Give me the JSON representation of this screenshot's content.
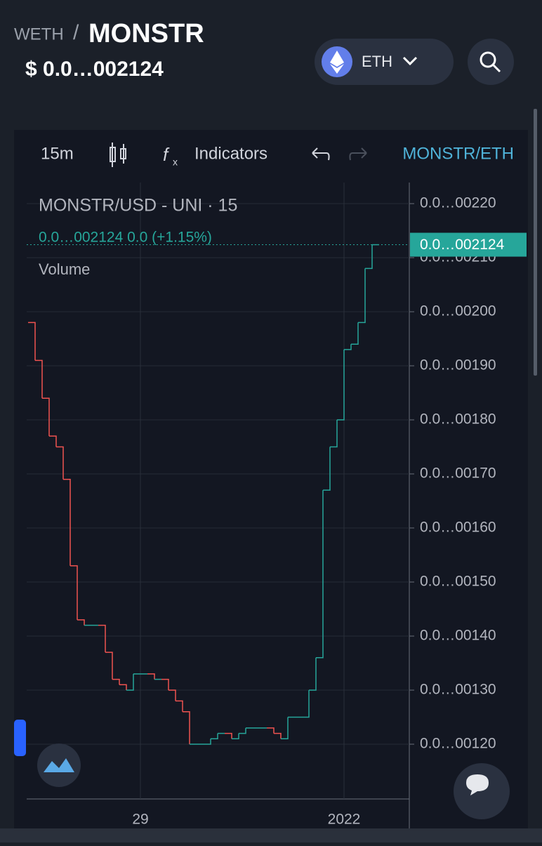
{
  "header": {
    "base": "WETH",
    "separator": "/",
    "symbol": "MONSTR",
    "price": "$ 0.0…002124",
    "network": "ETH"
  },
  "toolbar": {
    "interval": "15m",
    "indicators": "Indicators",
    "pair": "MONSTR/ETH"
  },
  "chart_data": {
    "type": "step",
    "title": "MONSTR/USD - UNI · 15",
    "legend_values": "0.0…002124  0.0 (+1.15%)",
    "volume_label": "Volume",
    "categories": [
      null,
      null,
      null,
      null,
      null,
      null,
      null,
      null,
      null,
      null,
      null,
      null,
      null,
      null,
      null,
      null,
      "29",
      null,
      null,
      null,
      null,
      null,
      null,
      null,
      null,
      null,
      null,
      null,
      null,
      null,
      null,
      null,
      null,
      null,
      null,
      null,
      null,
      null,
      null,
      null,
      null,
      null,
      null,
      null,
      null,
      "2022",
      null,
      null,
      null,
      null
    ],
    "values": [
      0.00198,
      0.00191,
      0.00184,
      0.00177,
      0.00175,
      0.00169,
      0.00153,
      0.00143,
      0.00142,
      0.00142,
      0.00142,
      0.00137,
      0.00132,
      0.00131,
      0.0013,
      0.00133,
      0.00133,
      0.00133,
      0.00132,
      0.00132,
      0.0013,
      0.00128,
      0.00126,
      0.0012,
      0.0012,
      0.0012,
      0.00121,
      0.00122,
      0.00122,
      0.00121,
      0.00122,
      0.00123,
      0.00123,
      0.00123,
      0.00123,
      0.00122,
      0.00121,
      0.00125,
      0.00125,
      0.00125,
      0.0013,
      0.00136,
      0.00167,
      0.00175,
      0.0018,
      0.00193,
      0.00194,
      0.00198,
      0.00208,
      0.002124
    ],
    "up_color": "#26a69a",
    "down_color": "#ef5350",
    "ylim": [
      0.0010961,
      0.002239
    ],
    "yticks": [
      {
        "value": 0.0022,
        "label": "0.0…00220"
      },
      {
        "value": 0.0021,
        "label": "0.0…00210"
      },
      {
        "value": 0.002,
        "label": "0.0…00200"
      },
      {
        "value": 0.0019,
        "label": "0.0…00190"
      },
      {
        "value": 0.0018,
        "label": "0.0…00180"
      },
      {
        "value": 0.0017,
        "label": "0.0…00170"
      },
      {
        "value": 0.0016,
        "label": "0.0…00160"
      },
      {
        "value": 0.0015,
        "label": "0.0…00150"
      },
      {
        "value": 0.0014,
        "label": "0.0…00140"
      },
      {
        "value": 0.0013,
        "label": "0.0…00130"
      },
      {
        "value": 0.0012,
        "label": "0.0…00120"
      }
    ],
    "last_price": {
      "value": 0.002124,
      "label": "0.0…002124"
    },
    "grid": true
  }
}
